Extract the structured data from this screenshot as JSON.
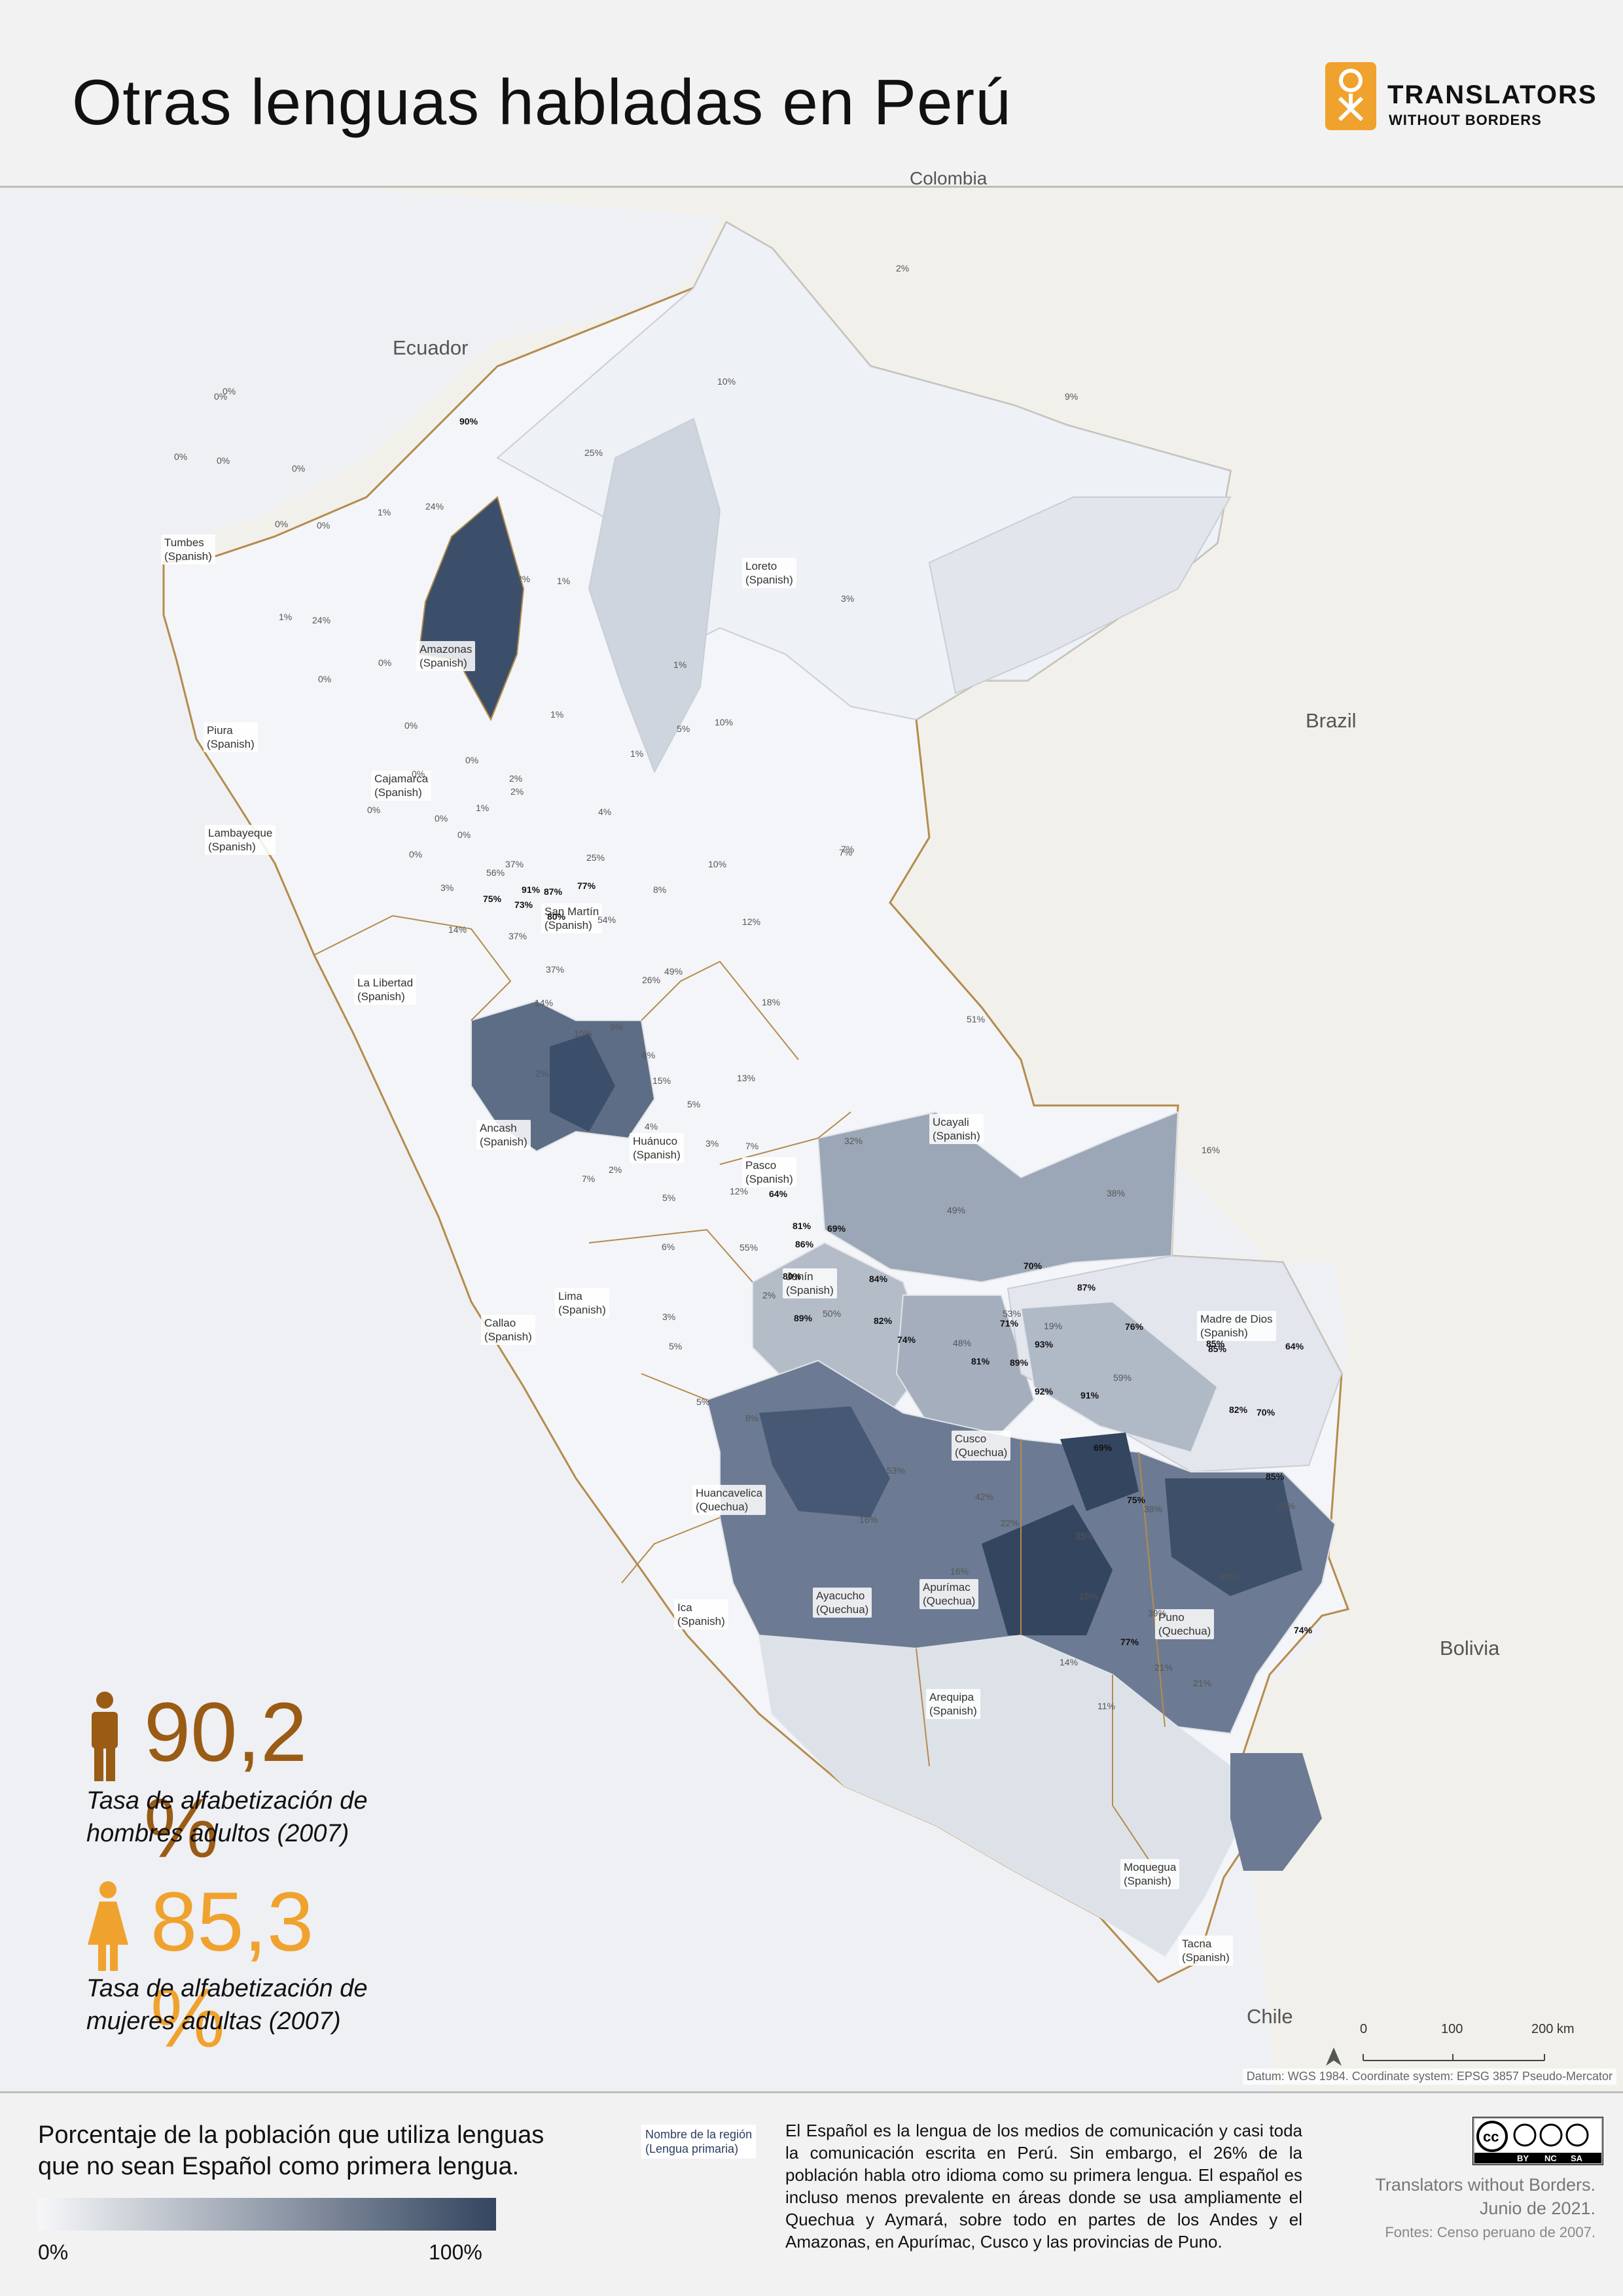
{
  "title": "Otras lenguas habladas en Perú",
  "logo": {
    "line1": "TRANSLATORS",
    "line2": "WITHOUT BORDERS"
  },
  "countries": {
    "ecuador": "Ecuador",
    "colombia": "Colombia",
    "brazil": "Brazil",
    "bolivia": "Bolivia",
    "chile": "Chile"
  },
  "regions": {
    "tumbes": "Tumbes\n(Spanish)",
    "piura": "Piura\n(Spanish)",
    "lambayeque": "Lambayeque\n(Spanish)",
    "cajamarca": "Cajamarca\n(Spanish)",
    "amazonas": "Amazonas\n(Spanish)",
    "loreto": "Loreto\n(Spanish)",
    "san_martin": "San Martín\n(Spanish)",
    "la_libertad": "La Libertad\n(Spanish)",
    "ancash": "Ancash\n(Spanish)",
    "huanuco": "Huánuco\n(Spanish)",
    "pasco": "Pasco\n(Spanish)",
    "ucayali": "Ucayali\n(Spanish)",
    "junin": "Junín\n(Spanish)",
    "lima": "Lima\n(Spanish)",
    "callao": "Callao\n(Spanish)",
    "madre_de_dios": "Madre de Dios\n(Spanish)",
    "cusco": "Cusco\n(Quechua)",
    "huancavelica": "Huancavelica\n(Quechua)",
    "ayacucho": "Ayacucho\n(Quechua)",
    "apurimac": "Apurímac\n(Quechua)",
    "puno": "Puno\n(Quechua)",
    "ica": "Ica\n(Spanish)",
    "arequipa": "Arequipa\n(Spanish)",
    "moquegua": "Moquegua\n(Spanish)",
    "tacna": "Tacna\n(Spanish)"
  },
  "percentages": [
    {
      "t": "0%"
    },
    {
      "t": "0%"
    },
    {
      "t": "0%"
    },
    {
      "t": "0%"
    },
    {
      "t": "0%"
    },
    {
      "t": "0%"
    },
    {
      "t": "0%"
    },
    {
      "t": "1%"
    },
    {
      "t": "1%"
    },
    {
      "t": "24%"
    },
    {
      "t": "90%"
    },
    {
      "t": "25%"
    },
    {
      "t": "24%"
    },
    {
      "t": "2%"
    },
    {
      "t": "10%"
    },
    {
      "t": "9%"
    },
    {
      "t": "3%"
    },
    {
      "t": "0%"
    },
    {
      "t": "2%"
    },
    {
      "t": "1%"
    },
    {
      "t": "0%"
    },
    {
      "t": "0%"
    },
    {
      "t": "0%"
    },
    {
      "t": "1%"
    },
    {
      "t": "1%"
    },
    {
      "t": "0%"
    },
    {
      "t": "0%"
    },
    {
      "t": "0%"
    },
    {
      "t": "0%"
    },
    {
      "t": "1%"
    },
    {
      "t": "5%"
    },
    {
      "t": "2%"
    },
    {
      "t": "0%"
    },
    {
      "t": "1%"
    },
    {
      "t": "10%"
    },
    {
      "t": "2%"
    },
    {
      "t": "4%"
    },
    {
      "t": "7%"
    },
    {
      "t": "37%"
    },
    {
      "t": "91%"
    },
    {
      "t": "56%"
    },
    {
      "t": "25%"
    },
    {
      "t": "87%"
    },
    {
      "t": "77%"
    },
    {
      "t": "75%"
    },
    {
      "t": "73%"
    },
    {
      "t": "80%"
    },
    {
      "t": "54%"
    },
    {
      "t": "37%"
    },
    {
      "t": "10%"
    },
    {
      "t": "8%"
    },
    {
      "t": "12%"
    },
    {
      "t": "3%"
    },
    {
      "t": "14%"
    },
    {
      "t": "37%"
    },
    {
      "t": "26%"
    },
    {
      "t": "49%"
    },
    {
      "t": "18%"
    },
    {
      "t": "51%"
    },
    {
      "t": "7%"
    },
    {
      "t": "14%"
    },
    {
      "t": "10%"
    },
    {
      "t": "9%"
    },
    {
      "t": "6%"
    },
    {
      "t": "2%"
    },
    {
      "t": "15%"
    },
    {
      "t": "13%"
    },
    {
      "t": "5%"
    },
    {
      "t": "4%"
    },
    {
      "t": "3%"
    },
    {
      "t": "7%"
    },
    {
      "t": "2%"
    },
    {
      "t": "32%"
    },
    {
      "t": "16%"
    },
    {
      "t": "38%"
    },
    {
      "t": "5%"
    },
    {
      "t": "7%"
    },
    {
      "t": "12%"
    },
    {
      "t": "64%"
    },
    {
      "t": "49%"
    },
    {
      "t": "81%"
    },
    {
      "t": "69%"
    },
    {
      "t": "55%"
    },
    {
      "t": "86%"
    },
    {
      "t": "6%"
    },
    {
      "t": "80%"
    },
    {
      "t": "84%"
    },
    {
      "t": "2%"
    },
    {
      "t": "70%"
    },
    {
      "t": "87%"
    },
    {
      "t": "50%"
    },
    {
      "t": "53%"
    },
    {
      "t": "89%"
    },
    {
      "t": "82%"
    },
    {
      "t": "71%"
    },
    {
      "t": "19%"
    },
    {
      "t": "76%"
    },
    {
      "t": "3%"
    },
    {
      "t": "74%"
    },
    {
      "t": "48%"
    },
    {
      "t": "5%"
    },
    {
      "t": "85%"
    },
    {
      "t": "93%"
    },
    {
      "t": "85%"
    },
    {
      "t": "64%"
    },
    {
      "t": "81%"
    },
    {
      "t": "89%"
    },
    {
      "t": "59%"
    },
    {
      "t": "5%"
    },
    {
      "t": "92%"
    },
    {
      "t": "91%"
    },
    {
      "t": "82%"
    },
    {
      "t": "70%"
    },
    {
      "t": "8%"
    },
    {
      "t": "69%"
    },
    {
      "t": "53%"
    },
    {
      "t": "85%"
    },
    {
      "t": "42%"
    },
    {
      "t": "75%"
    },
    {
      "t": "16%"
    },
    {
      "t": "22%"
    },
    {
      "t": "35%"
    },
    {
      "t": "38%"
    },
    {
      "t": "59%"
    },
    {
      "t": "55%"
    },
    {
      "t": "16%"
    },
    {
      "t": "15%"
    },
    {
      "t": "39%"
    },
    {
      "t": "77%"
    },
    {
      "t": "74%"
    },
    {
      "t": "14%"
    },
    {
      "t": "21%"
    },
    {
      "t": "21%"
    },
    {
      "t": "11%"
    }
  ],
  "stats": {
    "men": {
      "value": "90,2 %",
      "caption_line1": "Tasa de alfabetización de",
      "caption_line2": "hombres adultos (2007)",
      "color": "#9a5b14"
    },
    "women": {
      "value": "85,3 %",
      "caption_line1": "Tasa de alfabetización de",
      "caption_line2": "mujeres adultas (2007)",
      "color": "#f0a22e"
    }
  },
  "scale": {
    "t0": "0",
    "t100": "100",
    "t200": "200 km"
  },
  "datum": "Datum: WGS 1984. Coordinate system: EPSG 3857 Pseudo-Mercator",
  "legend": {
    "title_line1": "Porcentaje de la población que utiliza lenguas",
    "title_line2": "que no sean Español como primera lengua.",
    "min": "0%",
    "max": "100%",
    "color_low": "#f6f7f9",
    "color_high": "#34455f"
  },
  "key": {
    "line1": "Nombre de la región",
    "line2": "(Lengua primaria)"
  },
  "description": "El Español es la lengua de los medios de comunicación y casi toda la comunicación escrita en Perú. Sin embargo, el 26% de la población habla otro idioma como su primera lengua. El español es incluso menos prevalente en áreas donde se usa ampliamente el Quechua y Aymará, sobre todo en partes de los Andes y el Amazonas, en Apurímac, Cusco y las provincias de Puno.",
  "license": {
    "by": "BY",
    "nc": "NC",
    "sa": "SA"
  },
  "credit_line1": "Translators without Borders.",
  "credit_line2": "Junio de 2021.",
  "sources": "Fontes: Censo peruano de 2007."
}
